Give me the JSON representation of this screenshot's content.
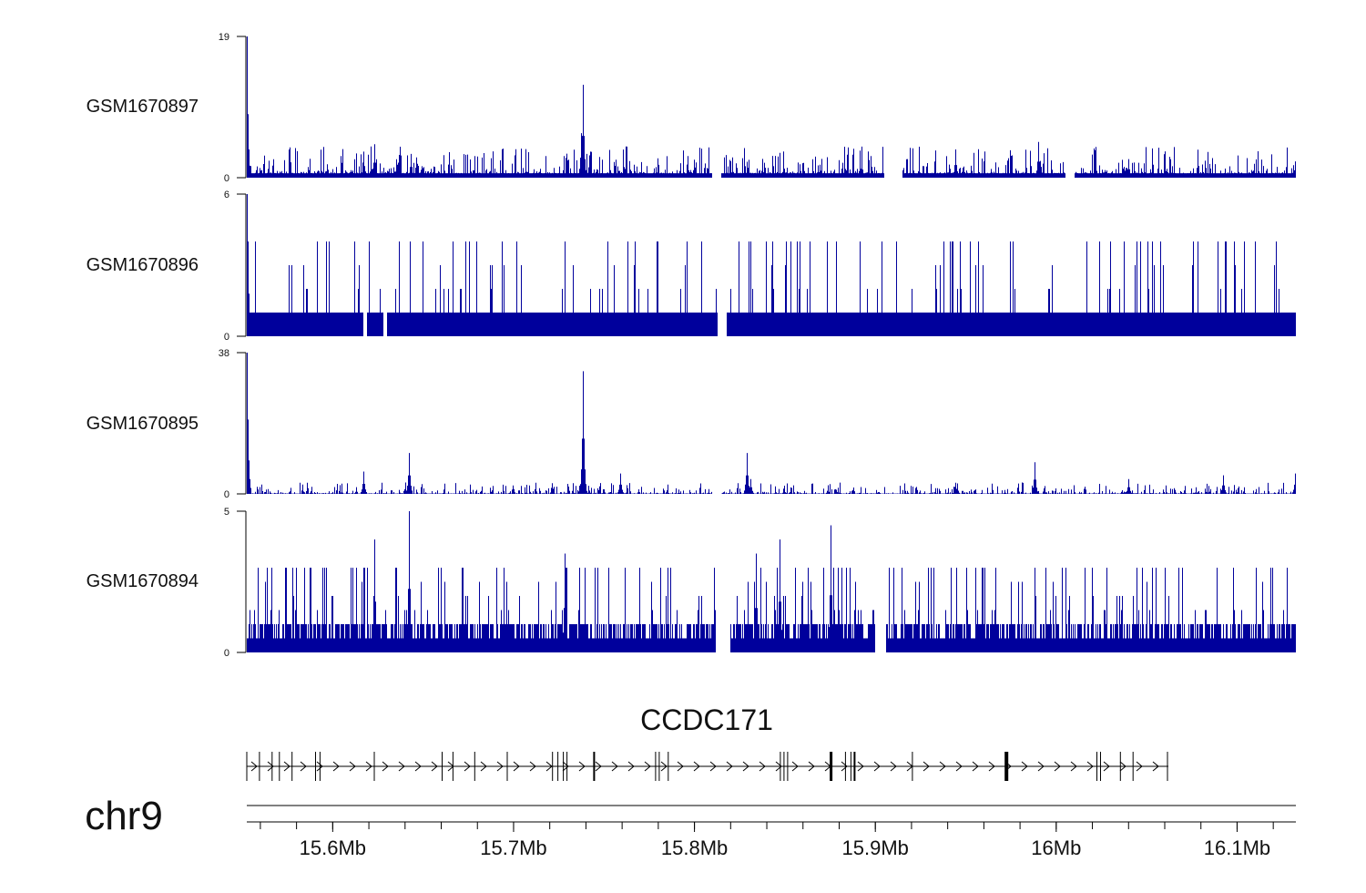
{
  "chart_data": {
    "type": "genome-tracks",
    "chromosome": "chr9",
    "x_unit": "Mb",
    "x_range": [
      15.5525,
      16.1325
    ],
    "x_ticks": [
      15.6,
      15.7,
      15.8,
      15.9,
      16.0,
      16.1
    ],
    "x_tick_labels": [
      "15.6Mb",
      "15.7Mb",
      "15.8Mb",
      "15.9Mb",
      "16Mb",
      "16.1Mb"
    ],
    "series_color": "#00009c",
    "tracks": [
      {
        "name": "GSM1670897",
        "ymin": 0,
        "ymax": 19,
        "ymin_label": "0",
        "ymax_label": "19",
        "baseline": 0.6,
        "noise": 1.2,
        "dense": false,
        "peaks": [
          [
            15.5525,
            19
          ],
          [
            15.5528,
            8
          ],
          [
            15.605,
            2
          ],
          [
            15.617,
            3.5
          ],
          [
            15.623,
            4.5
          ],
          [
            15.643,
            3.2
          ],
          [
            15.7385,
            12.5
          ],
          [
            15.7375,
            6
          ],
          [
            15.86,
            2
          ],
          [
            15.944,
            3.8
          ],
          [
            15.99,
            4.8
          ],
          [
            16.04,
            2.5
          ],
          [
            16.06,
            2
          ],
          [
            16.132,
            2.2
          ]
        ],
        "gaps": [
          [
            15.81,
            15.815
          ],
          [
            15.905,
            15.915
          ],
          [
            16.005,
            16.01
          ]
        ]
      },
      {
        "name": "GSM1670896",
        "ymin": 0,
        "ymax": 6,
        "ymin_label": "0",
        "ymax_label": "6",
        "baseline": 0,
        "noise": 0,
        "dense": true,
        "levels": [
          1,
          1,
          1,
          2,
          2,
          3,
          4
        ],
        "peaks": [
          [
            15.5525,
            6
          ],
          [
            15.553,
            4
          ]
        ],
        "gaps": [
          [
            15.813,
            15.818
          ],
          [
            15.617,
            15.619
          ],
          [
            15.628,
            15.63
          ]
        ]
      },
      {
        "name": "GSM1670895",
        "ymin": 0,
        "ymax": 38,
        "ymin_label": "0",
        "ymax_label": "38",
        "baseline": 0.1,
        "noise": 1.0,
        "dense": false,
        "peaks": [
          [
            15.5525,
            38
          ],
          [
            15.553,
            20
          ],
          [
            15.617,
            6
          ],
          [
            15.642,
            11
          ],
          [
            15.7385,
            33
          ],
          [
            15.7395,
            4
          ],
          [
            15.759,
            5.5
          ],
          [
            15.829,
            11
          ],
          [
            15.831,
            4
          ],
          [
            15.944,
            3
          ],
          [
            15.988,
            8.5
          ],
          [
            16.04,
            4
          ],
          [
            16.092,
            5
          ],
          [
            16.132,
            5.5
          ]
        ],
        "gaps": [
          [
            15.81,
            15.815
          ]
        ]
      },
      {
        "name": "GSM1670894",
        "ymin": 0,
        "ymax": 5,
        "ymin_label": "0",
        "ymax_label": "5",
        "baseline": 0,
        "noise": 0,
        "dense": true,
        "levels": [
          0.5,
          1,
          1,
          1.5,
          1.5,
          2,
          2.5,
          3
        ],
        "peaks": [
          [
            15.623,
            4
          ],
          [
            15.642,
            5
          ],
          [
            15.728,
            3.5
          ],
          [
            15.847,
            4
          ],
          [
            15.875,
            4.5
          ],
          [
            15.834,
            3.5
          ]
        ],
        "gaps": [
          [
            15.812,
            15.82
          ],
          [
            15.9,
            15.906
          ]
        ]
      }
    ],
    "gene": {
      "name": "CCDC171",
      "start": 15.5525,
      "end": 16.062,
      "strand": "+",
      "exons": [
        {
          "x": 15.5525,
          "w": 0.0
        },
        {
          "x": 15.5595,
          "w": 0.0
        },
        {
          "x": 15.5665,
          "w": 0.0
        },
        {
          "x": 15.5705,
          "w": 0.0
        },
        {
          "x": 15.5775,
          "w": 0.0
        },
        {
          "x": 15.5905,
          "w": 0.0
        },
        {
          "x": 15.593,
          "w": 0.0
        },
        {
          "x": 15.623,
          "w": 0.0
        },
        {
          "x": 15.6605,
          "w": 0.0
        },
        {
          "x": 15.6665,
          "w": 0.0
        },
        {
          "x": 15.6785,
          "w": 0.0
        },
        {
          "x": 15.6965,
          "w": 0.0
        },
        {
          "x": 15.7215,
          "w": 0.0
        },
        {
          "x": 15.7245,
          "w": 0.0
        },
        {
          "x": 15.7275,
          "w": 0.0
        },
        {
          "x": 15.7295,
          "w": 0.0
        },
        {
          "x": 15.7445,
          "w": 0.001
        },
        {
          "x": 15.7785,
          "w": 0.0
        },
        {
          "x": 15.7805,
          "w": 0.0
        },
        {
          "x": 15.7855,
          "w": 0.0
        },
        {
          "x": 15.8475,
          "w": 0.0
        },
        {
          "x": 15.8495,
          "w": 0.0
        },
        {
          "x": 15.8515,
          "w": 0.0
        },
        {
          "x": 15.8755,
          "w": 0.0015
        },
        {
          "x": 15.8835,
          "w": 0.0
        },
        {
          "x": 15.8865,
          "w": 0.0
        },
        {
          "x": 15.8885,
          "w": 0.001
        },
        {
          "x": 15.9205,
          "w": 0.0
        },
        {
          "x": 15.9725,
          "w": 0.002
        },
        {
          "x": 16.0225,
          "w": 0.0
        },
        {
          "x": 16.0245,
          "w": 0.0
        },
        {
          "x": 16.0355,
          "w": 0.0
        },
        {
          "x": 16.0425,
          "w": 0.0
        },
        {
          "x": 16.0615,
          "w": 0.0
        }
      ]
    }
  }
}
